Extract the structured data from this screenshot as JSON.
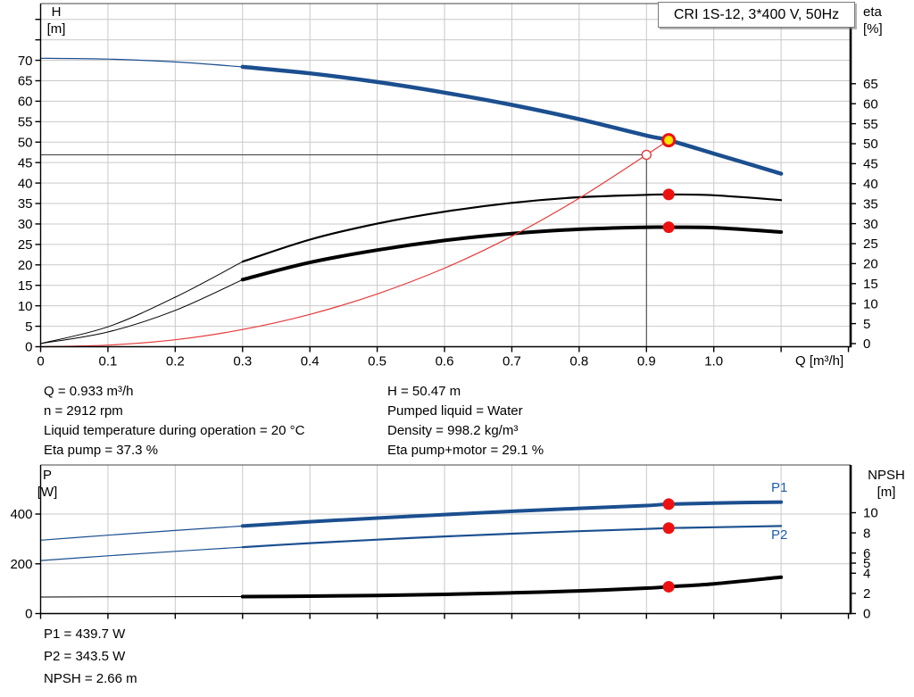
{
  "colors": {
    "curve_blue": "#1b4f8f",
    "series_label_blue": "#1d5fa8",
    "curve_black": "#000000",
    "curve_red": "#e63a3a",
    "marker_red": "#ee1111",
    "marker_yellow": "#ffe400",
    "grid": "#c9c9c9",
    "crosshair": "#3c3c3c",
    "spine": "#000000"
  },
  "annotations": {
    "left": [
      "Q = 0.933 m³/h",
      "n = 2912 rpm",
      "Liquid temperature during operation = 20 °C",
      "Eta pump = 37.3 %"
    ],
    "right": [
      "H = 50.47 m",
      "Pumped liquid = Water",
      "Density = 998.2 kg/m³",
      "Eta pump+motor = 29.1 %"
    ],
    "bottom": [
      "P1 = 439.7 W",
      "P2 = 343.5 W",
      "NPSH = 2.66 m"
    ]
  },
  "chart_data": [
    {
      "id": "head-efficiency-chart",
      "type": "line",
      "title": "CRI 1S-12, 3*400 V, 50Hz",
      "x_axis": {
        "label": "Q [m³/h]",
        "min": 0,
        "max": 1.2,
        "tick_values": [
          0,
          0.1,
          0.2,
          0.3,
          0.4,
          0.5,
          0.6,
          0.7,
          0.8,
          0.9,
          1.0,
          1.1,
          1.2
        ],
        "tick_labels": [
          "0",
          "0.1",
          "0.2",
          "0.3",
          "0.4",
          "0.5",
          "0.6",
          "0.7",
          "0.8",
          "0.9",
          "1.0"
        ]
      },
      "y_left": {
        "name": "H",
        "unit": "[m]",
        "min": 0,
        "max": 84,
        "tick_values": [
          0,
          5,
          10,
          15,
          20,
          25,
          30,
          35,
          40,
          45,
          50,
          55,
          60,
          65,
          70,
          75,
          80
        ],
        "tick_labels": [
          "0",
          "5",
          "10",
          "15",
          "20",
          "25",
          "30",
          "35",
          "40",
          "45",
          "50",
          "55",
          "60",
          "65",
          "70"
        ]
      },
      "y_right": {
        "name": "eta",
        "unit": "[%]",
        "min": 0,
        "max": 85,
        "tick_values": [
          0,
          5,
          10,
          15,
          20,
          25,
          30,
          35,
          40,
          45,
          50,
          55,
          60,
          65
        ],
        "tick_labels": [
          "0",
          "5",
          "10",
          "15",
          "20",
          "25",
          "30",
          "35",
          "40",
          "45",
          "50",
          "55",
          "60",
          "65"
        ]
      },
      "grid": true,
      "duty_point": {
        "q": 0.9,
        "h": 46.9
      },
      "series": [
        {
          "name": "h-curve-extension",
          "axis": "left",
          "color": "curve_blue",
          "width": 1.2,
          "points": [
            [
              0,
              70.5
            ],
            [
              0.1,
              70.3
            ],
            [
              0.2,
              69.6
            ],
            [
              0.3,
              68.4
            ]
          ]
        },
        {
          "name": "h-curve",
          "axis": "left",
          "color": "curve_blue",
          "width": 4.5,
          "points": [
            [
              0.3,
              68.4
            ],
            [
              0.4,
              66.8
            ],
            [
              0.5,
              64.7
            ],
            [
              0.6,
              62.1
            ],
            [
              0.7,
              59.1
            ],
            [
              0.8,
              55.6
            ],
            [
              0.9,
              51.6
            ],
            [
              0.933,
              50.47
            ],
            [
              1.0,
              47.2
            ],
            [
              1.1,
              42.3
            ]
          ]
        },
        {
          "name": "eta-pump-extension",
          "axis": "right",
          "color": "curve_black",
          "width": 1,
          "points": [
            [
              0,
              0
            ],
            [
              0.1,
              4.2
            ],
            [
              0.2,
              11.6
            ],
            [
              0.3,
              20.5
            ]
          ]
        },
        {
          "name": "eta-pump-curve",
          "axis": "right",
          "color": "curve_black",
          "width": 2.2,
          "points": [
            [
              0.3,
              20.5
            ],
            [
              0.4,
              26.0
            ],
            [
              0.5,
              30.0
            ],
            [
              0.6,
              33.0
            ],
            [
              0.7,
              35.2
            ],
            [
              0.8,
              36.6
            ],
            [
              0.9,
              37.2
            ],
            [
              0.933,
              37.3
            ],
            [
              1.0,
              37.1
            ],
            [
              1.1,
              35.9
            ]
          ]
        },
        {
          "name": "eta-pump-motor-extension",
          "axis": "right",
          "color": "curve_black",
          "width": 1,
          "points": [
            [
              0,
              0
            ],
            [
              0.1,
              2.9
            ],
            [
              0.2,
              8.3
            ],
            [
              0.3,
              16.0
            ]
          ]
        },
        {
          "name": "eta-pump-motor-curve",
          "axis": "right",
          "color": "curve_black",
          "width": 4,
          "points": [
            [
              0.3,
              16.0
            ],
            [
              0.4,
              20.3
            ],
            [
              0.5,
              23.4
            ],
            [
              0.6,
              25.8
            ],
            [
              0.7,
              27.5
            ],
            [
              0.8,
              28.6
            ],
            [
              0.9,
              29.1
            ],
            [
              0.933,
              29.1
            ],
            [
              1.0,
              29.0
            ],
            [
              1.1,
              27.9
            ]
          ]
        },
        {
          "name": "system-curve",
          "axis": "left",
          "color": "curve_red",
          "width": 1.2,
          "points": [
            [
              0,
              0
            ],
            [
              0.1,
              0.4
            ],
            [
              0.2,
              1.7
            ],
            [
              0.3,
              4.2
            ],
            [
              0.4,
              7.9
            ],
            [
              0.5,
              12.9
            ],
            [
              0.6,
              19.2
            ],
            [
              0.7,
              27.0
            ],
            [
              0.8,
              36.3
            ],
            [
              0.9,
              46.9
            ],
            [
              0.933,
              50.47
            ]
          ]
        }
      ],
      "markers": [
        {
          "name": "operating-point",
          "style": "yellow",
          "axis": "left",
          "q": 0.933,
          "value": 50.47
        },
        {
          "name": "duty-point",
          "style": "open",
          "axis": "left",
          "q": 0.9,
          "value": 46.9
        },
        {
          "name": "eta-pump-point",
          "style": "red",
          "axis": "right",
          "q": 0.933,
          "value": 37.3
        },
        {
          "name": "eta-pump-motor-point",
          "style": "red",
          "axis": "right",
          "q": 0.933,
          "value": 29.1
        }
      ]
    },
    {
      "id": "power-npsh-chart",
      "type": "line",
      "title": "",
      "x_axis": {
        "label": "",
        "min": 0,
        "max": 1.2,
        "tick_values": [
          0,
          0.1,
          0.2,
          0.3,
          0.4,
          0.5,
          0.6,
          0.7,
          0.8,
          0.9,
          1.0,
          1.1,
          1.2
        ],
        "tick_labels": []
      },
      "y_left": {
        "name": "P",
        "unit": "[W]",
        "min": 0,
        "max": 597,
        "tick_values": [
          0,
          200,
          400
        ],
        "tick_labels": [
          "0",
          "200",
          "400"
        ]
      },
      "y_right": {
        "name": "NPSH",
        "unit": "[m]",
        "min": 0,
        "max": 14.7,
        "tick_values": [
          0,
          2,
          4,
          5,
          6,
          8,
          10
        ],
        "tick_labels": [
          "0",
          "2",
          "4",
          "5",
          "6",
          "8",
          "10"
        ]
      },
      "grid": true,
      "series": [
        {
          "name": "p1-extension",
          "axis": "left",
          "color": "curve_blue",
          "width": 1.2,
          "points": [
            [
              0,
              295
            ],
            [
              0.1,
              315
            ],
            [
              0.2,
              334
            ],
            [
              0.3,
              352
            ]
          ]
        },
        {
          "name": "p1-curve",
          "axis": "left",
          "color": "curve_blue",
          "width": 4,
          "label": "P1",
          "points": [
            [
              0.3,
              352
            ],
            [
              0.4,
              369
            ],
            [
              0.5,
              384
            ],
            [
              0.6,
              398
            ],
            [
              0.7,
              411
            ],
            [
              0.8,
              423
            ],
            [
              0.9,
              434
            ],
            [
              0.933,
              439.7
            ],
            [
              1.0,
              444
            ],
            [
              1.1,
              448
            ]
          ]
        },
        {
          "name": "p2-extension",
          "axis": "left",
          "color": "curve_blue",
          "width": 1.2,
          "points": [
            [
              0,
              213
            ],
            [
              0.1,
              232
            ],
            [
              0.2,
              250
            ],
            [
              0.3,
              267
            ]
          ]
        },
        {
          "name": "p2-curve",
          "axis": "left",
          "color": "curve_blue",
          "width": 2.2,
          "label": "P2",
          "points": [
            [
              0.3,
              267
            ],
            [
              0.4,
              283
            ],
            [
              0.5,
              297
            ],
            [
              0.6,
              310
            ],
            [
              0.7,
              321
            ],
            [
              0.8,
              331
            ],
            [
              0.9,
              340
            ],
            [
              0.933,
              343.5
            ],
            [
              1.0,
              347
            ],
            [
              1.1,
              352
            ]
          ]
        },
        {
          "name": "npsh-extension",
          "axis": "right",
          "color": "curve_black",
          "width": 1,
          "points": [
            [
              0,
              1.64
            ],
            [
              0.15,
              1.66
            ],
            [
              0.3,
              1.68
            ]
          ]
        },
        {
          "name": "npsh-curve",
          "axis": "right",
          "color": "curve_black",
          "width": 4,
          "points": [
            [
              0.3,
              1.68
            ],
            [
              0.4,
              1.73
            ],
            [
              0.5,
              1.8
            ],
            [
              0.6,
              1.9
            ],
            [
              0.7,
              2.05
            ],
            [
              0.8,
              2.25
            ],
            [
              0.9,
              2.52
            ],
            [
              0.933,
              2.66
            ],
            [
              1.0,
              2.95
            ],
            [
              1.1,
              3.6
            ]
          ]
        }
      ],
      "markers": [
        {
          "name": "p1-point",
          "style": "red",
          "axis": "left",
          "q": 0.933,
          "value": 439.7
        },
        {
          "name": "p2-point",
          "style": "red",
          "axis": "left",
          "q": 0.933,
          "value": 343.5
        },
        {
          "name": "npsh-point",
          "style": "red",
          "axis": "right",
          "q": 0.933,
          "value": 2.66
        }
      ],
      "series_labels": [
        {
          "text": "P1"
        },
        {
          "text": "P2"
        }
      ]
    }
  ]
}
